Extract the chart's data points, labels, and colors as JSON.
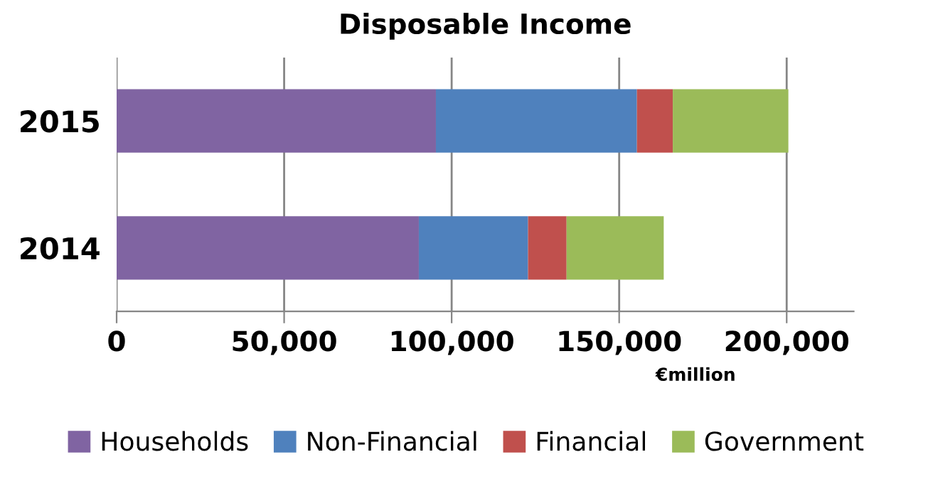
{
  "chart_data": {
    "type": "bar",
    "orientation": "horizontal",
    "stacked": true,
    "title": "Disposable Income",
    "xlabel": "€million",
    "categories": [
      "2015",
      "2014"
    ],
    "series": [
      {
        "name": "Households",
        "color": "#8064a2",
        "values": [
          95300,
          90200
        ]
      },
      {
        "name": "Non-Financial",
        "color": "#4f81bd",
        "values": [
          60000,
          32600
        ]
      },
      {
        "name": "Financial",
        "color": "#c0504d",
        "values": [
          10700,
          11500
        ]
      },
      {
        "name": "Government",
        "color": "#9bbb59",
        "values": [
          34500,
          29000
        ]
      }
    ],
    "xlim": [
      0,
      220000
    ],
    "xticks": [
      {
        "value": 0,
        "label": "0"
      },
      {
        "value": 50000,
        "label": "50,000"
      },
      {
        "value": 100000,
        "label": "100,000"
      },
      {
        "value": 150000,
        "label": "150,000"
      },
      {
        "value": 200000,
        "label": "200,000"
      }
    ],
    "grid": "x",
    "legend": "bottom"
  }
}
